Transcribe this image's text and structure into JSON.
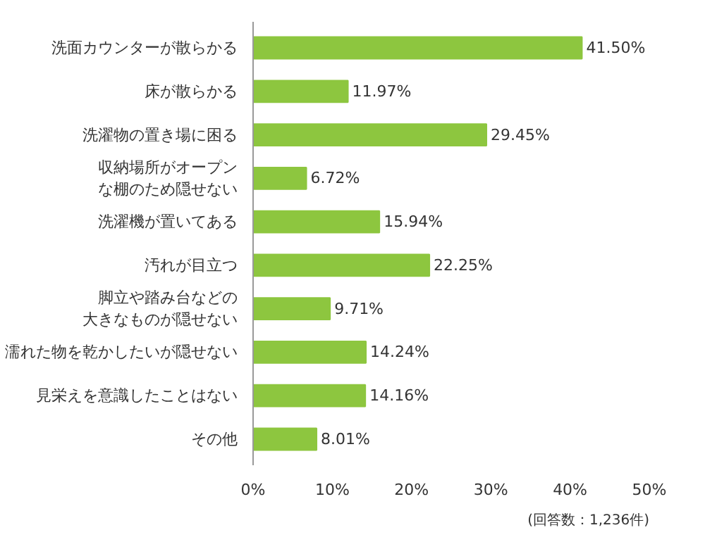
{
  "chart_data": {
    "type": "bar",
    "orientation": "horizontal",
    "categories": [
      "洗面カウンターが散らかる",
      "床が散らかる",
      "洗濯物の置き場に困る",
      "収納場所がオープンな棚のため隠せない",
      "洗濯機が置いてある",
      "汚れが目立つ",
      "脚立や踏み台などの大きなものが隠せない",
      "濡れた物を乾かしたいが隠せない",
      "見栄えを意識したことはない",
      "その他"
    ],
    "values": [
      41.5,
      11.97,
      29.45,
      6.72,
      15.94,
      22.25,
      9.71,
      14.24,
      14.16,
      8.01
    ],
    "value_labels": [
      "41.50%",
      "11.97%",
      "29.45%",
      "6.72%",
      "15.94%",
      "22.25%",
      "9.71%",
      "14.24%",
      "14.16%",
      "8.01%"
    ],
    "color": "#8dc63f",
    "xlim": [
      0,
      50
    ],
    "xticks": [
      {
        "value": 0,
        "label": "0%"
      },
      {
        "value": 10,
        "label": "10%"
      },
      {
        "value": 20,
        "label": "20%"
      },
      {
        "value": 30,
        "label": "30%"
      },
      {
        "value": 40,
        "label": "40%"
      },
      {
        "value": 50,
        "label": "50%"
      }
    ],
    "grid": false,
    "annotations": [
      "(回答数：1,236件)"
    ]
  }
}
